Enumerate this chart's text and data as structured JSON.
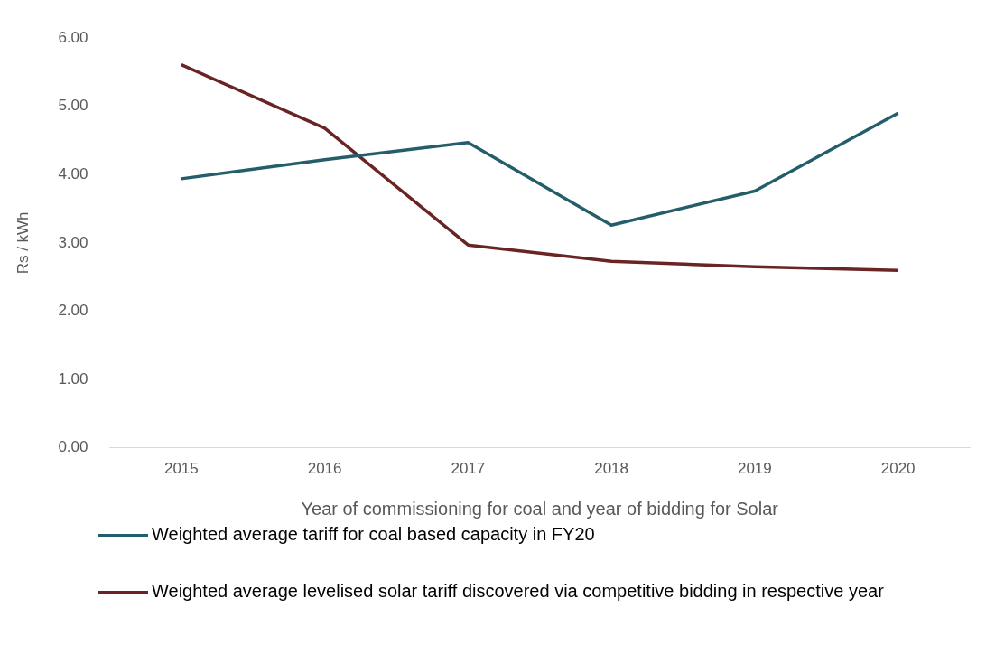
{
  "chart_data": {
    "type": "line",
    "xlabel": "Year of commissioning for coal and year of bidding for Solar",
    "ylabel": "Rs / kWh",
    "categories": [
      "2015",
      "2016",
      "2017",
      "2018",
      "2019",
      "2020"
    ],
    "series": [
      {
        "name": "Weighted average tariff for coal based capacity in FY20",
        "color": "#255e6b",
        "values": [
          3.94,
          4.22,
          4.47,
          3.26,
          3.76,
          4.9
        ]
      },
      {
        "name": "Weighted average levelised solar tariff discovered via competitive bidding in respective year",
        "color": "#6b2424",
        "values": [
          5.61,
          4.68,
          2.97,
          2.73,
          2.65,
          2.6
        ]
      }
    ],
    "ylim": [
      0,
      6
    ],
    "yticks": [
      {
        "value": 0,
        "label": "0.00"
      },
      {
        "value": 1,
        "label": "1.00"
      },
      {
        "value": 2,
        "label": "2.00"
      },
      {
        "value": 3,
        "label": "3.00"
      },
      {
        "value": 4,
        "label": "4.00"
      },
      {
        "value": 5,
        "label": "5.00"
      },
      {
        "value": 6,
        "label": "6.00"
      }
    ],
    "grid": false,
    "legend": "bottom",
    "marker": "none",
    "line_style": "solid"
  }
}
